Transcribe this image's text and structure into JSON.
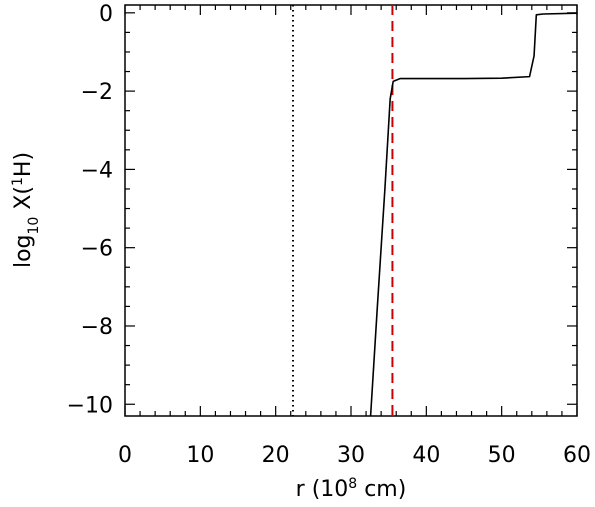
{
  "chart_data": {
    "type": "line",
    "title": "",
    "xlabel": "r (10^8 cm)",
    "ylabel": "log10 X(1H)",
    "xlabel_parts": {
      "main": "r  (10",
      "sup": "8",
      "tail": " cm)"
    },
    "ylabel_parts": {
      "main": "log",
      "sub": "10",
      "mid": " X(",
      "sup": "1",
      "tail": "H)"
    },
    "xlim": [
      0,
      60
    ],
    "ylim": [
      -10.3,
      0.2
    ],
    "x_ticks": [
      0,
      10,
      20,
      30,
      40,
      50,
      60
    ],
    "x_tick_labels": [
      "0",
      "10",
      "20",
      "30",
      "40",
      "50",
      "60"
    ],
    "y_ticks": [
      -10,
      -8,
      -6,
      -4,
      -2,
      0
    ],
    "y_tick_labels": [
      "−10",
      "−8",
      "−6",
      "−4",
      "−2",
      "0"
    ],
    "grid": false,
    "series": [
      {
        "color": "#000000",
        "style": "solid",
        "x": [
          32.6,
          33.5,
          34.5,
          35.2,
          35.6,
          36.5,
          40,
          45,
          50,
          53.7,
          54.3,
          54.6,
          55.5,
          60
        ],
        "y": [
          -10.3,
          -7.5,
          -4.5,
          -2.2,
          -1.75,
          -1.68,
          -1.68,
          -1.68,
          -1.67,
          -1.63,
          -1.1,
          -0.05,
          -0.03,
          -0.01
        ]
      }
    ],
    "vlines": [
      {
        "x": 22.3,
        "style": "dotted",
        "color": "#000000"
      },
      {
        "x": 35.5,
        "style": "dashed",
        "color": "#cc0000"
      }
    ]
  }
}
